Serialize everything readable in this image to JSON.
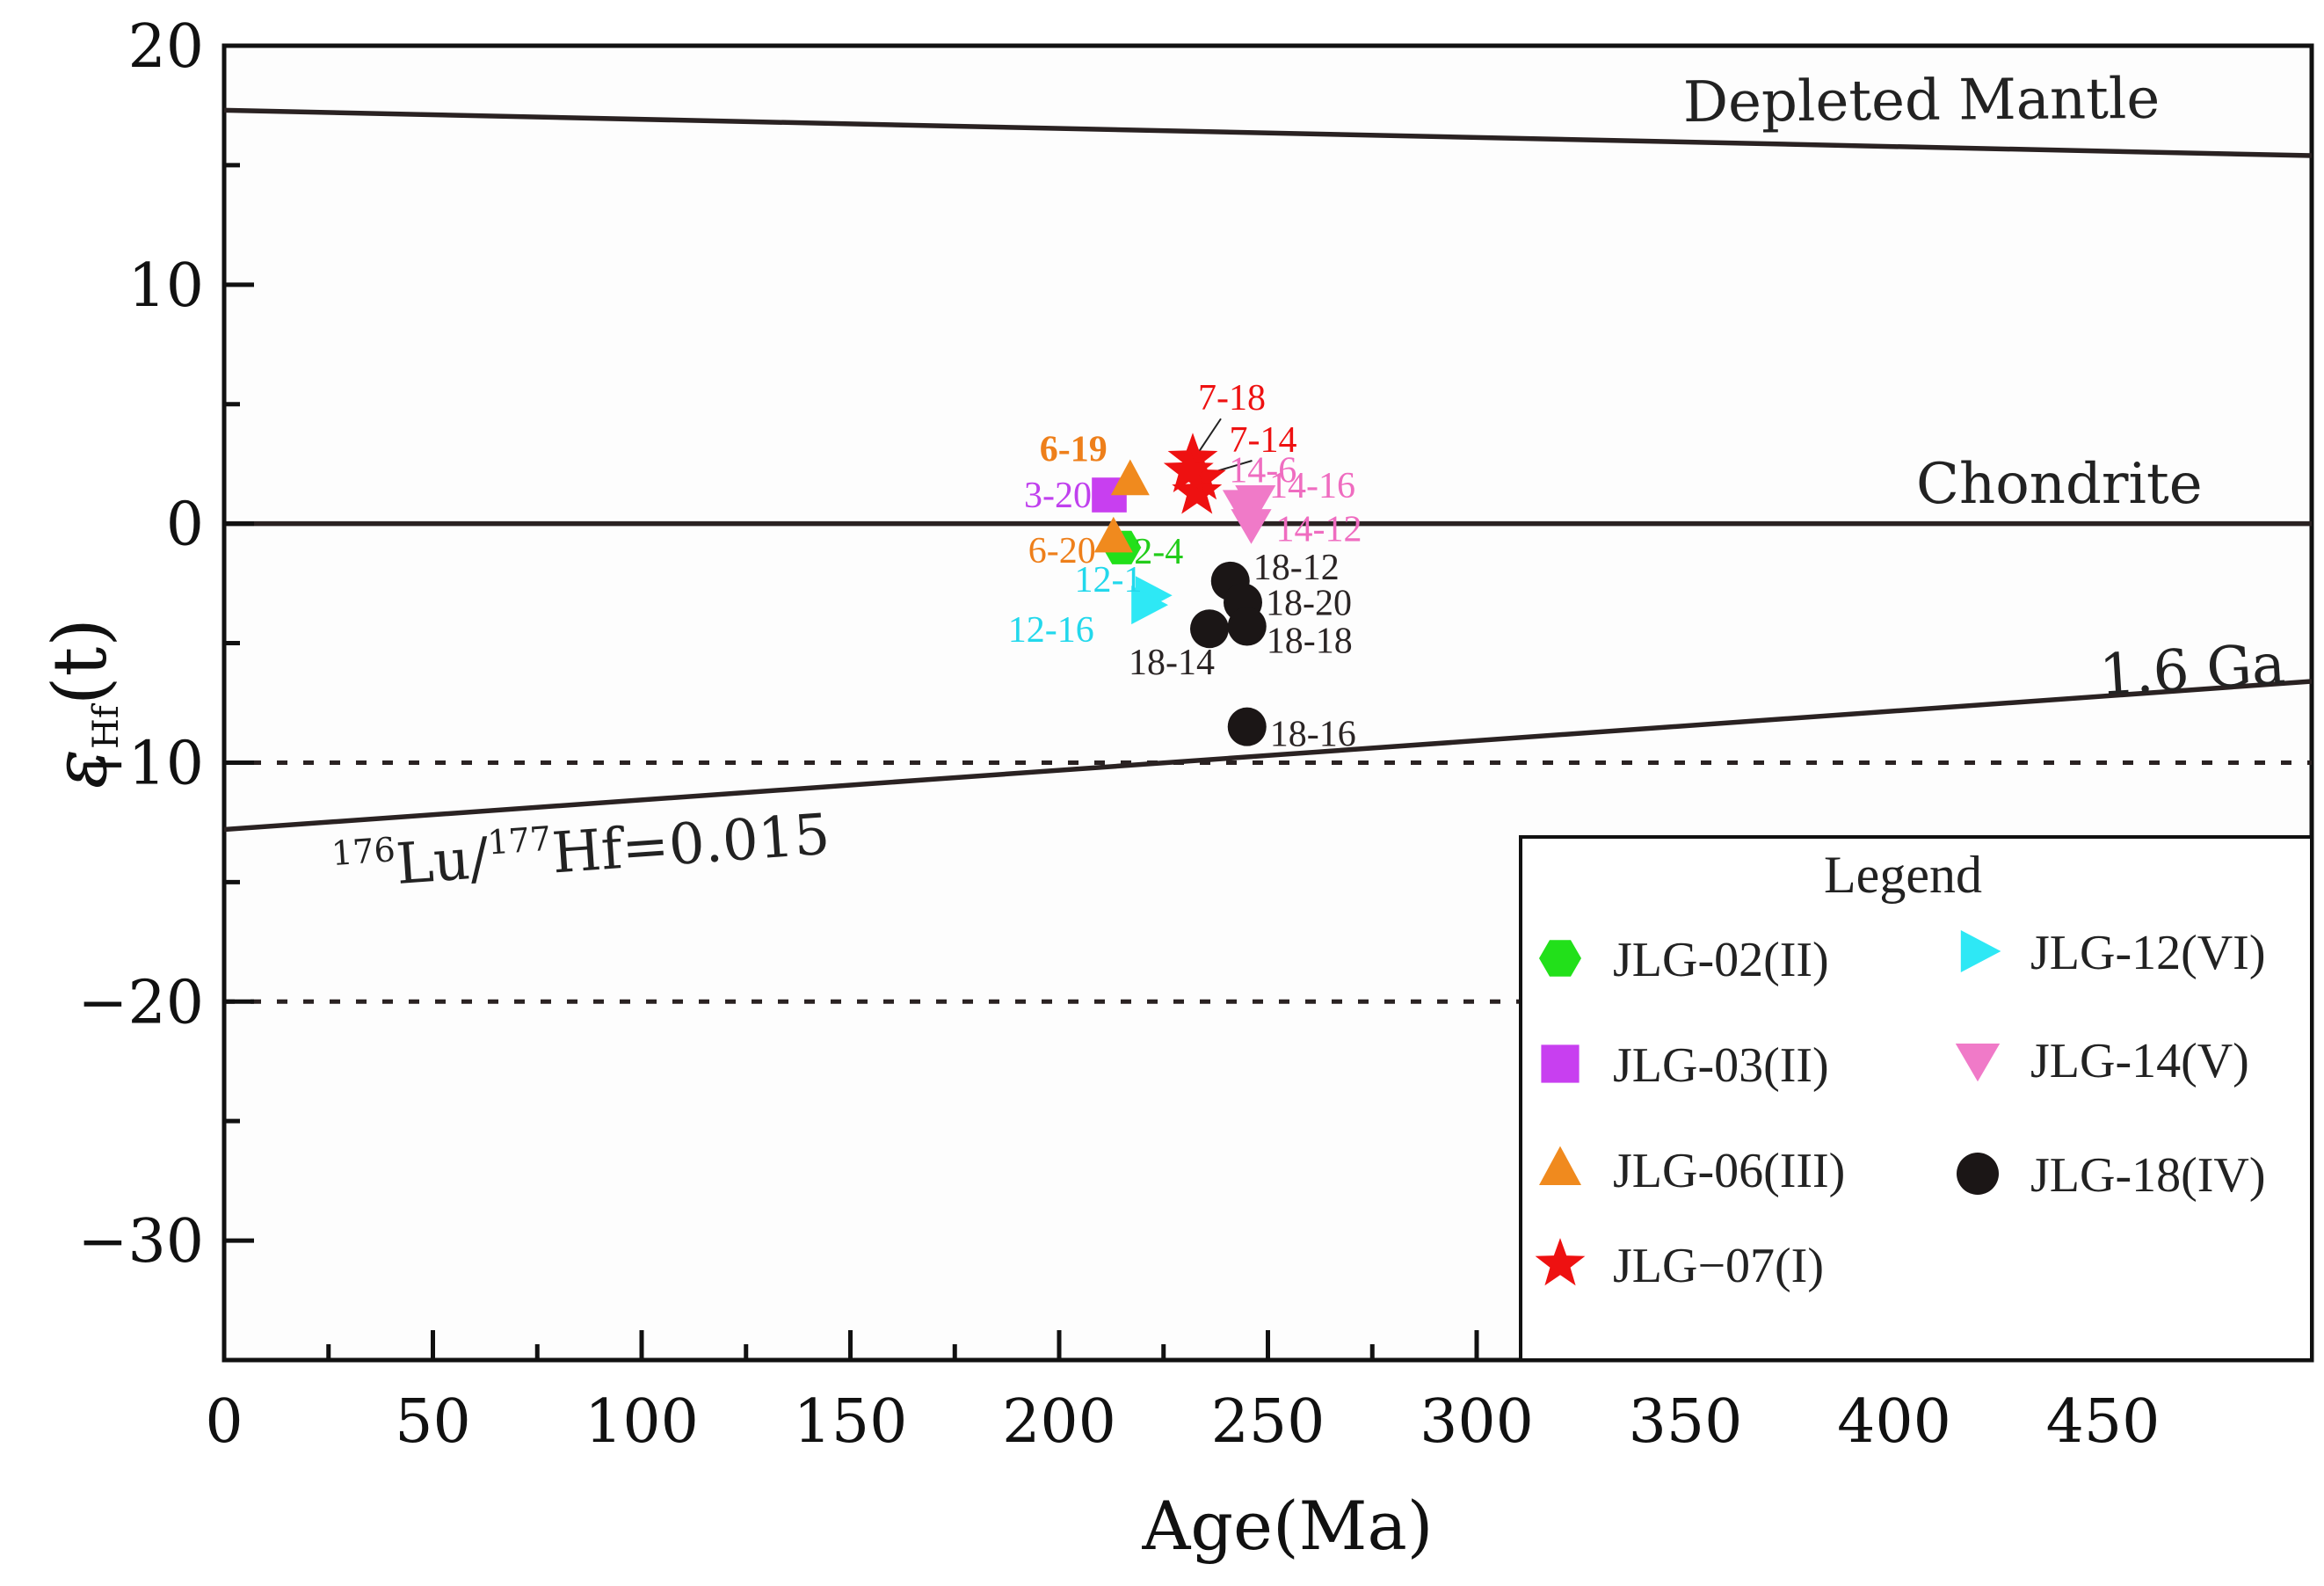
{
  "chart_data": {
    "type": "scatter",
    "xlabel": "Age(Ma)",
    "ylabel_main": "ε",
    "ylabel_sub": "Hf",
    "ylabel_suffix": "(t)",
    "xlim": [
      0,
      500
    ],
    "ylim": [
      -35,
      20
    ],
    "x_ticks": [
      0,
      50,
      100,
      150,
      200,
      250,
      300,
      350,
      400,
      450
    ],
    "x_tick_labels": [
      "0",
      "50",
      "100",
      "150",
      "200",
      "250",
      "300",
      "350",
      "400",
      "450"
    ],
    "y_ticks": [
      20,
      10,
      0,
      -10,
      -20,
      -30
    ],
    "y_tick_labels": [
      "20",
      "10",
      "0",
      "−10",
      "−20",
      "−30"
    ],
    "reference_lines": [
      {
        "name": "Depleted Mantle",
        "label": "Depleted Mantle",
        "x": [
          0,
          500
        ],
        "y": [
          17.3,
          15.4
        ],
        "style": "solid"
      },
      {
        "name": "Chondrite",
        "label": "Chondrite",
        "x": [
          0,
          500
        ],
        "y": [
          0,
          0
        ],
        "style": "solid"
      },
      {
        "name": "1.6 Ga crust",
        "label": "1.6 Ga",
        "x": [
          0,
          500
        ],
        "y": [
          -12.8,
          -6.6
        ],
        "style": "solid"
      },
      {
        "name": "y=-10",
        "label": "",
        "x": [
          0,
          500
        ],
        "y": [
          -10,
          -10
        ],
        "style": "dotted"
      },
      {
        "name": "y=-20",
        "label": "",
        "x": [
          0,
          500
        ],
        "y": [
          -20,
          -20
        ],
        "style": "dotted"
      }
    ],
    "lu_hf_label": {
      "sup1": "176",
      "part1": "Lu/",
      "sup2": "177",
      "part2": "Hf=0.015"
    },
    "series": [
      {
        "name": "JLG-02(II)",
        "marker": "hexagon",
        "color": "#22e01a",
        "points": [
          {
            "x": 215,
            "y": -1.0,
            "label": "2-4"
          }
        ]
      },
      {
        "name": "JLG-03(II)",
        "marker": "square",
        "color": "#c83ff0",
        "points": [
          {
            "x": 212,
            "y": 1.2,
            "label": "3-20"
          }
        ]
      },
      {
        "name": "JLG-06(III)",
        "marker": "triangle-up",
        "color": "#f08a1e",
        "points": [
          {
            "x": 217,
            "y": 1.8,
            "label": "6-19"
          },
          {
            "x": 213,
            "y": -0.6,
            "label": "6-20"
          }
        ]
      },
      {
        "name": "JLG−07(I)",
        "marker": "star",
        "color": "#ee1111",
        "points": [
          {
            "x": 232,
            "y": 2.7,
            "label": "7-18"
          },
          {
            "x": 234,
            "y": 1.9,
            "label": "7-14"
          },
          {
            "x": 233,
            "y": 1.3,
            "label": ""
          },
          {
            "x": 231,
            "y": 2.2,
            "label": ""
          }
        ]
      },
      {
        "name": "JLG-12(VI)",
        "marker": "triangle-right",
        "color": "#2ee8f5",
        "points": [
          {
            "x": 222,
            "y": -3.0,
            "label": "12-1"
          },
          {
            "x": 221,
            "y": -3.4,
            "label": "12-16"
          }
        ]
      },
      {
        "name": "JLG-14(V)",
        "marker": "triangle-down",
        "color": "#f07ac8",
        "points": [
          {
            "x": 247,
            "y": 1.0,
            "label": "14-6"
          },
          {
            "x": 244,
            "y": 0.8,
            "label": "14-16"
          },
          {
            "x": 246,
            "y": 0.0,
            "label": "14-12"
          }
        ]
      },
      {
        "name": "JLG-18(IV)",
        "marker": "circle",
        "color": "#1b1616",
        "points": [
          {
            "x": 241,
            "y": -2.4,
            "label": "18-12"
          },
          {
            "x": 244,
            "y": -3.3,
            "label": "18-20"
          },
          {
            "x": 245,
            "y": -4.3,
            "label": "18-18"
          },
          {
            "x": 236,
            "y": -4.4,
            "label": "18-14"
          },
          {
            "x": 245,
            "y": -8.5,
            "label": "18-16"
          }
        ]
      }
    ],
    "legend": {
      "title": "Legend",
      "placement": "bottom-right",
      "entries": [
        "JLG-02(II)",
        "JLG-12(VI)",
        "JLG-03(II)",
        "JLG-14(V)",
        "JLG-06(III)",
        "JLG-18(IV)",
        "JLG−07(I)"
      ]
    }
  }
}
